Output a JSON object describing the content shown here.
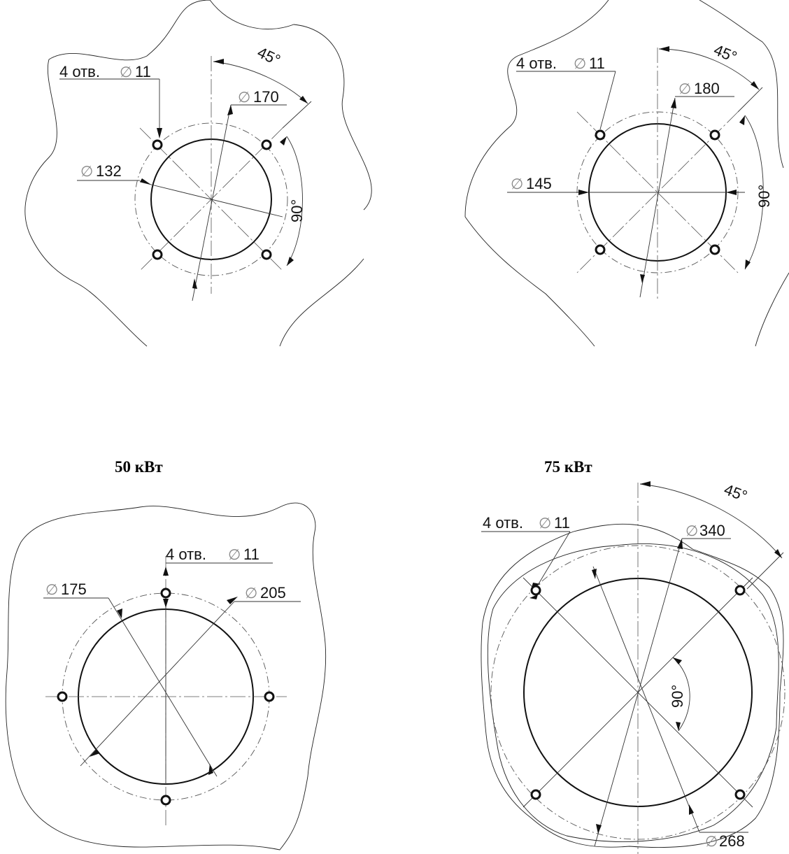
{
  "captions": {
    "d3": "50 кВт",
    "d4": "75 кВт"
  },
  "d1": {
    "holes": "4 отв.",
    "hole_d": "11",
    "bolt_d": "170",
    "inner_d": "132",
    "angle_a": "45°",
    "angle_b": "90°"
  },
  "d2": {
    "holes": "4 отв.",
    "hole_d": "11",
    "bolt_d": "180",
    "inner_d": "145",
    "angle_a": "45°",
    "angle_b": "90°"
  },
  "d3": {
    "holes": "4 отв.",
    "hole_d": "11",
    "inner_d": "175",
    "bolt_d": "205"
  },
  "d4": {
    "holes": "4 отв.",
    "hole_d": "11",
    "bolt_d": "340",
    "inner_d": "268",
    "angle_a": "45°",
    "angle_b": "90°"
  },
  "symbols": {
    "diameter": "∅"
  },
  "colors": {
    "lines": "#111111",
    "thin": "#333333",
    "centerlines": "#555555"
  }
}
